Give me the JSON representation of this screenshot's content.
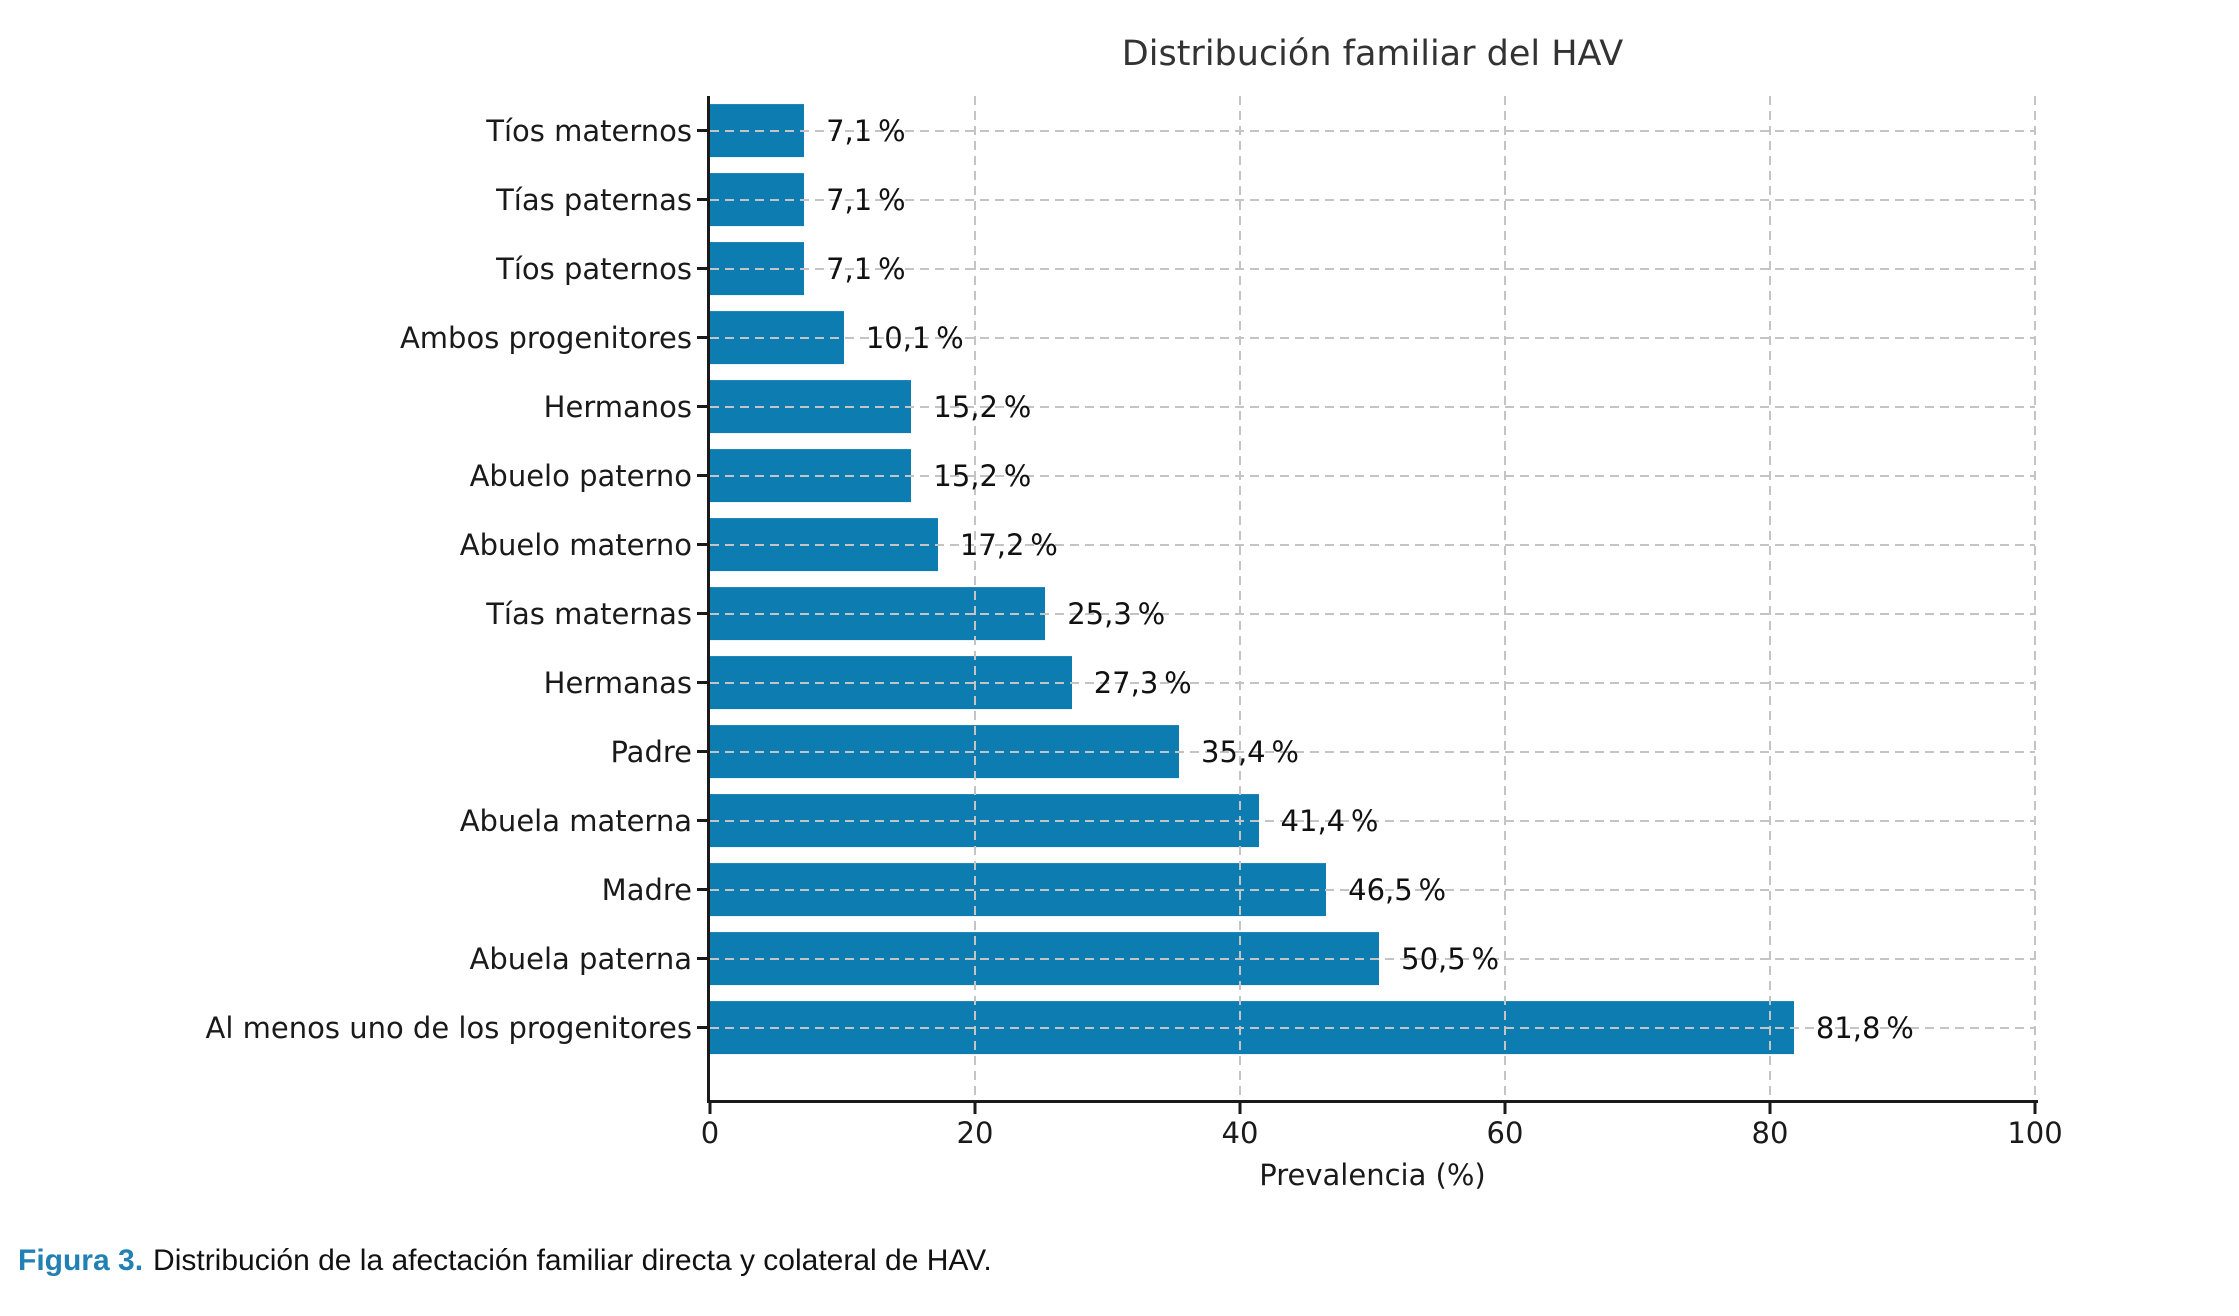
{
  "chart_data": {
    "type": "bar",
    "orientation": "horizontal",
    "title": "Distribución familiar del HAV",
    "xlabel": "Prevalencia (%)",
    "xlim": [
      0,
      100
    ],
    "xticks": [
      0,
      20,
      40,
      60,
      80,
      100
    ],
    "grid": "dashed-both-axes",
    "legend": "none",
    "bar_color": "#0d7cb1",
    "categories": [
      "Tíos maternos",
      "Tías paternas",
      "Tíos paternos",
      "Ambos progenitores",
      "Hermanos",
      "Abuelo paterno",
      "Abuelo materno",
      "Tías maternas",
      "Hermanas",
      "Padre",
      "Abuela materna",
      "Madre",
      "Abuela paterna",
      "Al menos uno de los progenitores"
    ],
    "values": [
      7.1,
      7.1,
      7.1,
      10.1,
      15.2,
      15.2,
      17.2,
      25.3,
      27.3,
      35.4,
      41.4,
      46.5,
      50.5,
      81.8
    ],
    "value_labels": [
      "7,1 %",
      "7,1 %",
      "7,1 %",
      "10,1 %",
      "15,2 %",
      "15,2 %",
      "17,2 %",
      "25,3 %",
      "27,3 %",
      "35,4 %",
      "41,4 %",
      "46,5 %",
      "50,5 %",
      "81,8 %"
    ]
  },
  "caption": {
    "label": "Figura 3.",
    "text": "Distribución de la afectación familiar directa y colateral de HAV.",
    "label_color": "#2180b4"
  }
}
